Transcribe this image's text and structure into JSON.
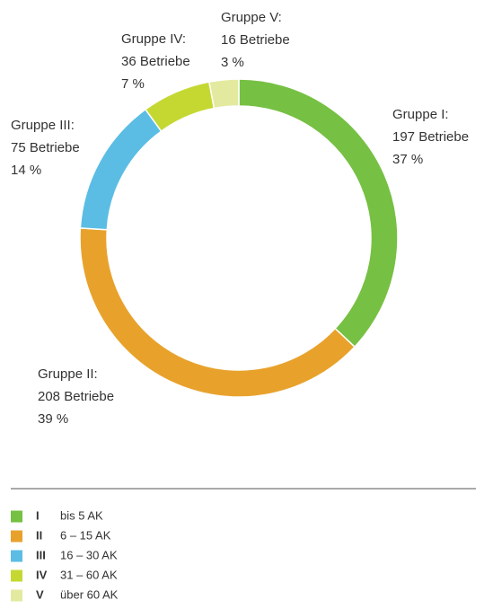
{
  "chart_data": {
    "type": "pie",
    "donut": true,
    "categories": [
      "Gruppe I:",
      "Gruppe II:",
      "Gruppe III:",
      "Gruppe IV:",
      "Gruppe V:"
    ],
    "values": [
      37,
      39,
      14,
      7,
      3
    ],
    "value_labels": [
      "37 %",
      "39 %",
      "14 %",
      "7 %",
      "3 %"
    ],
    "counts": [
      197,
      208,
      75,
      36,
      16
    ],
    "count_labels": [
      "197 Betriebe",
      "208 Betriebe",
      "75 Betriebe",
      "36 Betriebe",
      "16 Betriebe"
    ],
    "colors": [
      "#76c043",
      "#e8a22c",
      "#5bbde4",
      "#c5d832",
      "#e3eaa0"
    ],
    "legend": [
      {
        "key": "I",
        "label": "bis 5 AK"
      },
      {
        "key": "II",
        "label": "6 – 15 AK"
      },
      {
        "key": "III",
        "label": "16 – 30 AK"
      },
      {
        "key": "IV",
        "label": "31 – 60 AK"
      },
      {
        "key": "V",
        "label": "über 60 AK"
      }
    ]
  }
}
